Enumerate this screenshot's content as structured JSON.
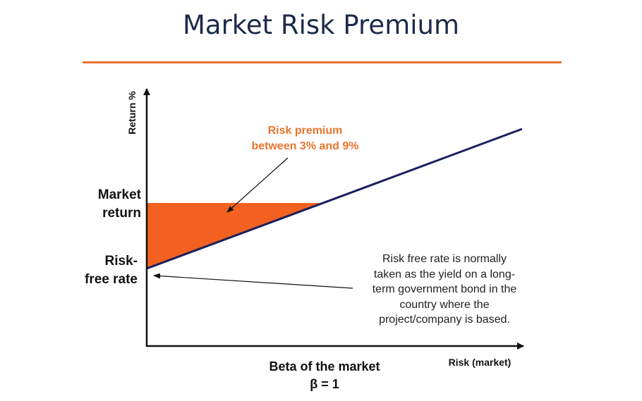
{
  "title": "Market Risk Premium",
  "axes": {
    "y_label": "Return %",
    "x_label": "Risk (market)"
  },
  "labels": {
    "market_return_line1": "Market",
    "market_return_line2": "return",
    "risk_free_line1": "Risk-",
    "risk_free_line2": "free rate",
    "beta_line1": "Beta of the market",
    "beta_line2": "β = 1"
  },
  "premium_note": {
    "line1": "Risk premium",
    "line2": "between 3% and 9%"
  },
  "risk_free_note": {
    "line1": "Risk free rate is normally",
    "line2": "taken as the yield on a long-",
    "line3": "term government bond in the",
    "line4": "country where the",
    "line5": "project/company is based."
  },
  "colors": {
    "title": "#1b2a4a",
    "accent": "#e8752f",
    "premium_fill": "#f2611f",
    "line": "#1b1f5e",
    "axis": "#111111"
  }
}
